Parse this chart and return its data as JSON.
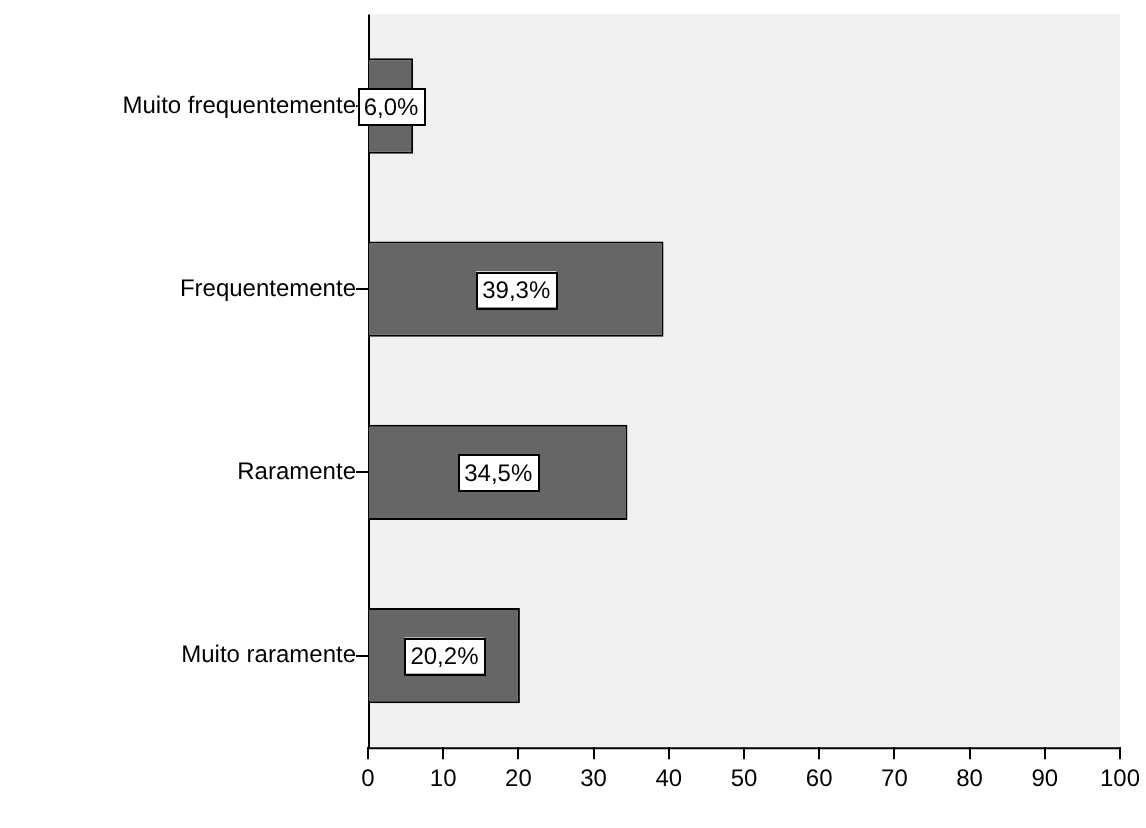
{
  "chart_data": {
    "type": "bar",
    "orientation": "horizontal",
    "categories": [
      "Muito frequentemente",
      "Frequentemente",
      "Raramente",
      "Muito raramente"
    ],
    "values": [
      6.0,
      39.3,
      34.5,
      20.2
    ],
    "color": "#666666",
    "value_labels": [
      "6,0%",
      "39,3%",
      "34,5%",
      "20,2%"
    ],
    "xlim": [
      0,
      100
    ],
    "xticks": [
      0,
      10,
      20,
      30,
      40,
      50,
      60,
      70,
      80,
      90,
      100
    ],
    "grid": false,
    "legend": false
  }
}
